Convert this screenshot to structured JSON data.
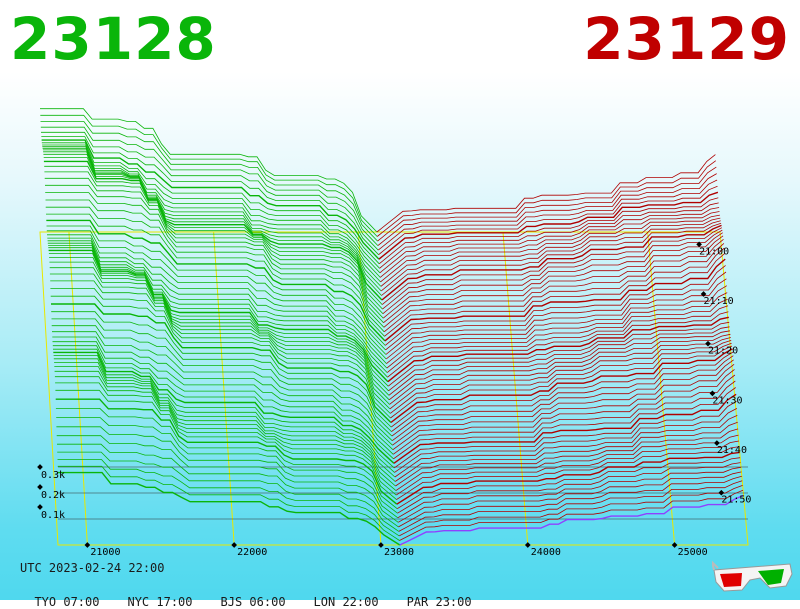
{
  "header": {
    "bid_price": "23128",
    "ask_price": "23129",
    "bid_color": "#0ab50a",
    "ask_color": "#c00000"
  },
  "footer": {
    "utc_line": "UTC 2023-02-24 22:00",
    "timezones": [
      {
        "label": "TYO 07:00"
      },
      {
        "label": "NYC 17:00"
      },
      {
        "label": "BJS 06:00"
      },
      {
        "label": "LON 22:00"
      },
      {
        "label": "PAR 23:00"
      }
    ],
    "glasses_icon": "3d-glasses-icon"
  },
  "chart_data": {
    "type": "area",
    "description_kind": "3d-order-book-depth",
    "x_ticks": [
      "21000",
      "22000",
      "23000",
      "24000",
      "25000"
    ],
    "x_tick_values": [
      21000,
      22000,
      23000,
      24000,
      25000
    ],
    "x_range": [
      20800,
      25500
    ],
    "depth_ticks": [
      "0.1k",
      "0.2k",
      "0.3k"
    ],
    "depth_tick_values": [
      100,
      200,
      300
    ],
    "depth_range": [
      0,
      1000
    ],
    "time_ticks": [
      "21:00",
      "21:10",
      "21:20",
      "21:30",
      "21:40",
      "21:50"
    ],
    "time_range": [
      "20:55",
      "22:00"
    ],
    "mid_price": 23128.5,
    "series": [
      {
        "side": "bid",
        "color": "#0ab50a",
        "approx_total_depth_at_21000": 650
      },
      {
        "side": "ask",
        "color": "#b00000",
        "approx_total_depth_at_25000": 420
      },
      {
        "side": "latest-ask",
        "color": "#9040ff"
      }
    ],
    "grid_color": "#e8e800"
  }
}
